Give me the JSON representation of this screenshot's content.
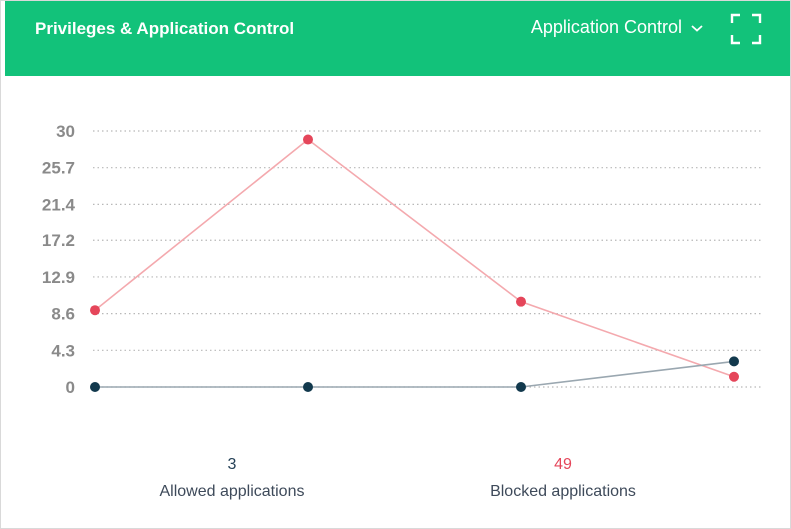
{
  "header": {
    "title": "Privileges & Application Control",
    "dropdown_label": "Application Control",
    "icons": {
      "dropdown": "chevron-down-icon",
      "expand": "expand-icon"
    },
    "color": "#12c27a"
  },
  "chart_data": {
    "type": "line",
    "x": [
      1,
      2,
      3,
      4
    ],
    "ylim": [
      0,
      30
    ],
    "yticks": [
      "0",
      "4.3",
      "8.6",
      "12.9",
      "17.2",
      "21.4",
      "25.7",
      "30"
    ],
    "grid": true,
    "series": [
      {
        "values": [
          9,
          29,
          10,
          1.2
        ],
        "color": "#f4a9ae",
        "marker_color": "#e5465a"
      },
      {
        "values": [
          0,
          0,
          0,
          3
        ],
        "color": "#9aa7b0",
        "marker_color": "#12394d"
      }
    ]
  },
  "stats": {
    "allowed": {
      "value": "3",
      "label": "Allowed applications"
    },
    "blocked": {
      "value": "49",
      "label": "Blocked applications"
    }
  }
}
